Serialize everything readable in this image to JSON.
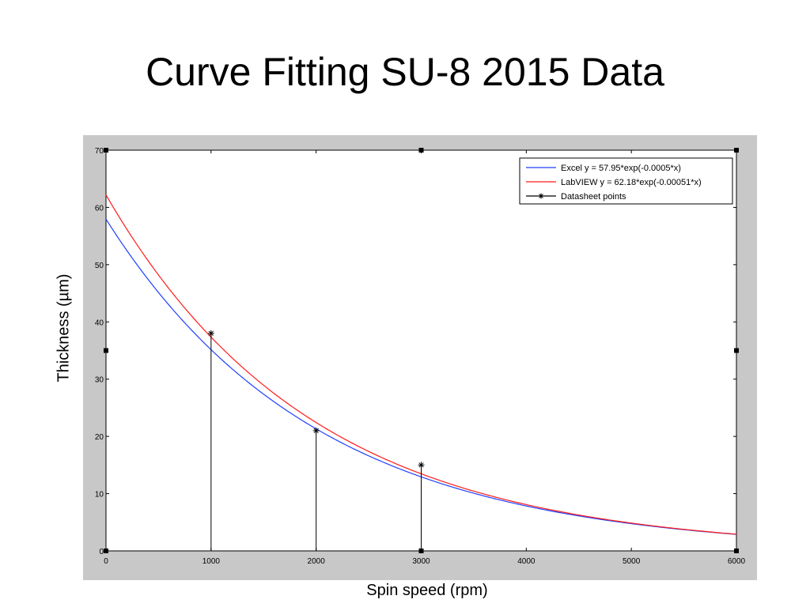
{
  "slide": {
    "title": "Curve Fitting SU-8 2015 Data"
  },
  "chart_data": {
    "type": "line",
    "xlabel": "Spin speed (rpm)",
    "ylabel": "Thickness (µm)",
    "xlim": [
      0,
      6000
    ],
    "ylim": [
      0,
      70
    ],
    "xticks": [
      "0",
      "1000",
      "2000",
      "3000",
      "4000",
      "5000",
      "6000"
    ],
    "yticks": [
      "0",
      "10",
      "20",
      "30",
      "40",
      "50",
      "60",
      "70"
    ],
    "grid": false,
    "legend_position": "top-right",
    "series": [
      {
        "name": "Excel y = 57.95*exp(-0.0005*x)",
        "kind": "curve",
        "color": "#1f3fff",
        "a": 57.95,
        "b": -0.0005
      },
      {
        "name": "LabVIEW y = 62.18*exp(-0.00051*x)",
        "kind": "curve",
        "color": "#ff1a1a",
        "a": 62.18,
        "b": -0.00051
      },
      {
        "name": "Datasheet points",
        "kind": "stem",
        "color": "#000000",
        "marker": "*",
        "x": [
          1000,
          2000,
          3000
        ],
        "y": [
          38,
          21,
          15
        ]
      }
    ]
  }
}
